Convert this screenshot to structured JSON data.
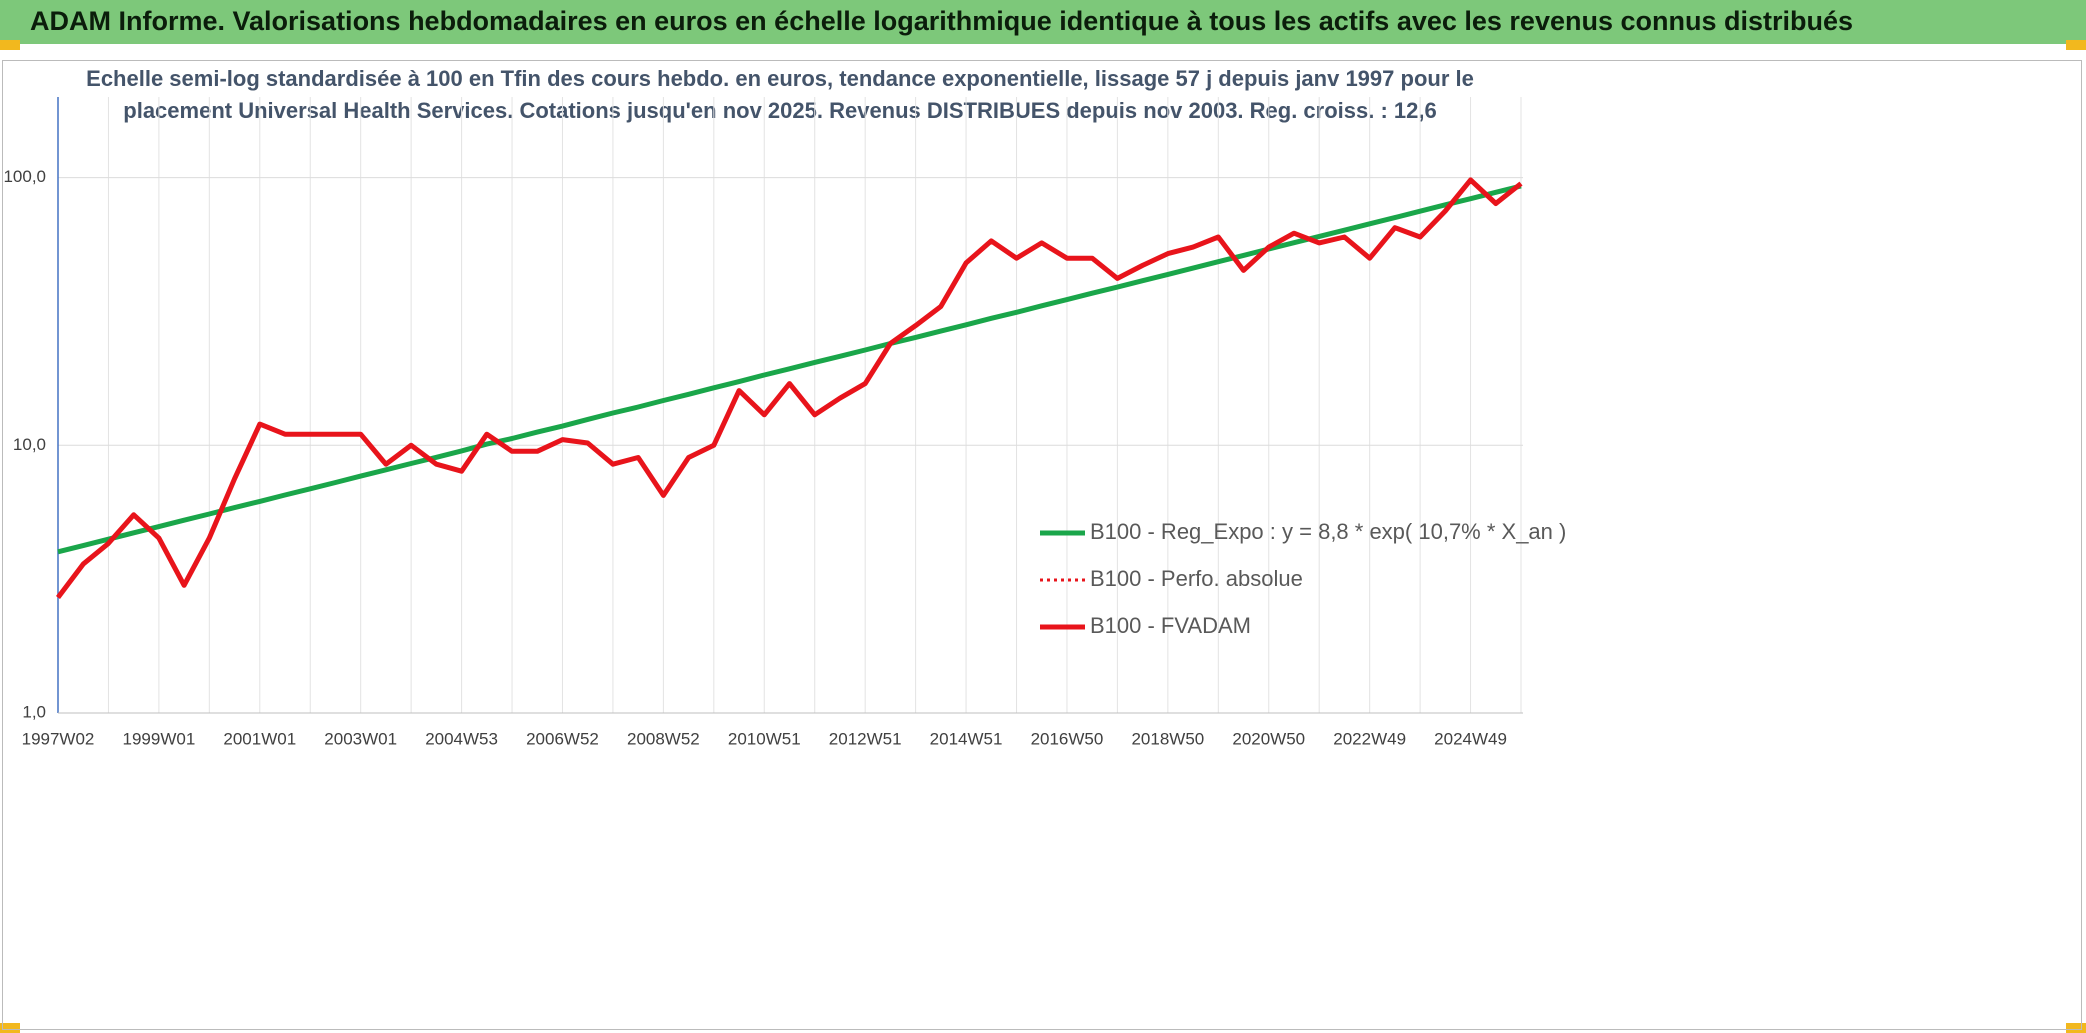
{
  "header": {
    "title": "ADAM Informe. Valorisations hebdomadaires en euros en échelle logarithmique identique à tous les actifs avec les revenus connus distribués"
  },
  "chart_data": {
    "type": "line",
    "title": "Echelle semi-log standardisée à 100 en Tfin des cours hebdo. en euros, tendance exponentielle, lissage 57 j depuis janv 1997 pour le",
    "subtitle": "placement Universal Health Services. Cotations jusqu'en nov 2025. Revenus DISTRIBUES depuis nov 2003. Reg. croiss. : 12,6",
    "log_scale": true,
    "grid": true,
    "legend": "right",
    "ylim": [
      1,
      200
    ],
    "yticks": [
      {
        "value": 1,
        "label": "1,0"
      },
      {
        "value": 10,
        "label": "10,0"
      },
      {
        "value": 100,
        "label": "100,0"
      }
    ],
    "categories": [
      "1997W02",
      null,
      null,
      null,
      "1999W01",
      null,
      null,
      null,
      "2001W01",
      null,
      null,
      null,
      "2003W01",
      null,
      null,
      null,
      "2004W53",
      null,
      null,
      null,
      "2006W52",
      null,
      null,
      null,
      "2008W52",
      null,
      null,
      null,
      "2010W51",
      null,
      null,
      null,
      "2012W51",
      null,
      null,
      null,
      "2014W51",
      null,
      null,
      null,
      "2016W50",
      null,
      null,
      null,
      "2018W50",
      null,
      null,
      null,
      "2020W50",
      null,
      null,
      null,
      "2022W49",
      null,
      null,
      null,
      "2024W49",
      null,
      null
    ],
    "series": [
      {
        "name": "B100 - Reg_Expo : y = 8,8 * exp( 10,7% *  X_an )",
        "color": "#1aa64a",
        "style": "solid",
        "values": [
          4.0,
          4.22,
          4.46,
          4.71,
          4.97,
          5.25,
          5.54,
          5.85,
          6.17,
          6.52,
          6.88,
          7.26,
          7.67,
          8.1,
          8.55,
          9.02,
          9.53,
          10.1,
          10.6,
          11.2,
          11.8,
          12.5,
          13.2,
          13.9,
          14.7,
          15.5,
          16.4,
          17.3,
          18.3,
          19.3,
          20.4,
          21.5,
          22.7,
          24.0,
          25.3,
          26.7,
          28.2,
          29.8,
          31.4,
          33.2,
          35.0,
          37.0,
          39.0,
          41.2,
          43.5,
          45.9,
          48.5,
          51.2,
          54.1,
          57.1,
          60.3,
          63.6,
          67.2,
          70.9,
          74.9,
          79.1,
          83.4,
          88.1,
          93.0
        ]
      },
      {
        "name": "B100 - Perfo. absolue",
        "color": "#e8141b",
        "style": "dotted",
        "values": [
          2.7,
          3.6,
          4.3,
          5.5,
          4.5,
          3.0,
          4.5,
          7.5,
          12,
          11,
          11,
          11,
          11,
          8.5,
          10,
          8.5,
          8.0,
          11,
          9.5,
          9.5,
          10.5,
          10.2,
          8.5,
          9.0,
          6.5,
          9.0,
          10,
          16,
          13,
          17,
          13,
          15,
          17,
          24,
          28,
          33,
          48,
          58,
          50,
          57,
          50,
          50,
          42,
          47,
          52,
          55,
          60,
          45,
          55,
          62,
          57,
          60,
          50,
          65,
          60,
          75,
          98,
          80,
          95
        ]
      },
      {
        "name": "B100 - FVADAM",
        "color": "#e8141b",
        "style": "solid",
        "values": [
          2.7,
          3.6,
          4.3,
          5.5,
          4.5,
          3.0,
          4.5,
          7.5,
          12,
          11,
          11,
          11,
          11,
          8.5,
          10,
          8.5,
          8.0,
          11,
          9.5,
          9.5,
          10.5,
          10.2,
          8.5,
          9.0,
          6.5,
          9.0,
          10,
          16,
          13,
          17,
          13,
          15,
          17,
          24,
          28,
          33,
          48,
          58,
          50,
          57,
          50,
          50,
          42,
          47,
          52,
          55,
          60,
          45,
          55,
          62,
          57,
          60,
          50,
          65,
          60,
          75,
          98,
          80,
          95
        ]
      }
    ]
  }
}
